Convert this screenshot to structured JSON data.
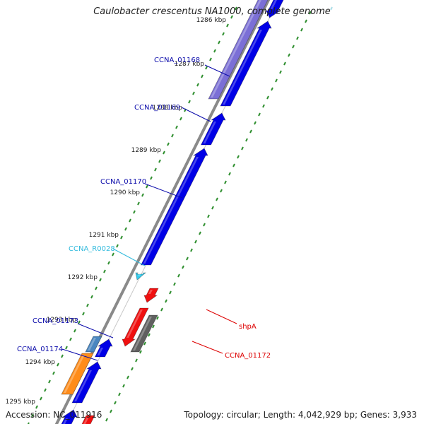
{
  "title": "Caulobacter crescentus NA1000, complete genome",
  "footer": {
    "accession": "Accession: NC_011916",
    "summary": "Topology: circular; Length: 4,042,929 bp; Genes: 3,933"
  },
  "colors": {
    "forward_gene": "#0000e6",
    "reverse_gene": "#f01010",
    "rna": "#33ccee",
    "pseudo": "#606060",
    "tick_inner": "#2f8f2f",
    "tick_outer": "#2f8f2f",
    "backbone": "#8a8a8a",
    "purple": "#7b6fd6",
    "orange": "#ff8c1a",
    "steelblue": "#4a86c0"
  },
  "ticks": [
    {
      "label": "1286 kbp"
    },
    {
      "label": "1287 kbp"
    },
    {
      "label": "1288 kbp"
    },
    {
      "label": "1289 kbp"
    },
    {
      "label": "1290 kbp"
    },
    {
      "label": "1291 kbp"
    },
    {
      "label": "1292 kbp"
    },
    {
      "label": "1293 kbp"
    },
    {
      "label": "1294 kbp"
    },
    {
      "label": "1295 kbp"
    }
  ],
  "gene_labels": [
    {
      "name": "CCNA_01168",
      "color": "#0a0aaa"
    },
    {
      "name": "CCNA_01169",
      "color": "#0a0aaa"
    },
    {
      "name": "CCNA_01170",
      "color": "#0a0aaa"
    },
    {
      "name": "CCNA_R0028",
      "color": "#33bbdd"
    },
    {
      "name": "CCNA_01173",
      "color": "#0a0aaa"
    },
    {
      "name": "CCNA_01174",
      "color": "#0a0aaa"
    },
    {
      "name": "shpA",
      "color": "#dd0000"
    },
    {
      "name": "CCNA_01172",
      "color": "#dd0000"
    }
  ]
}
